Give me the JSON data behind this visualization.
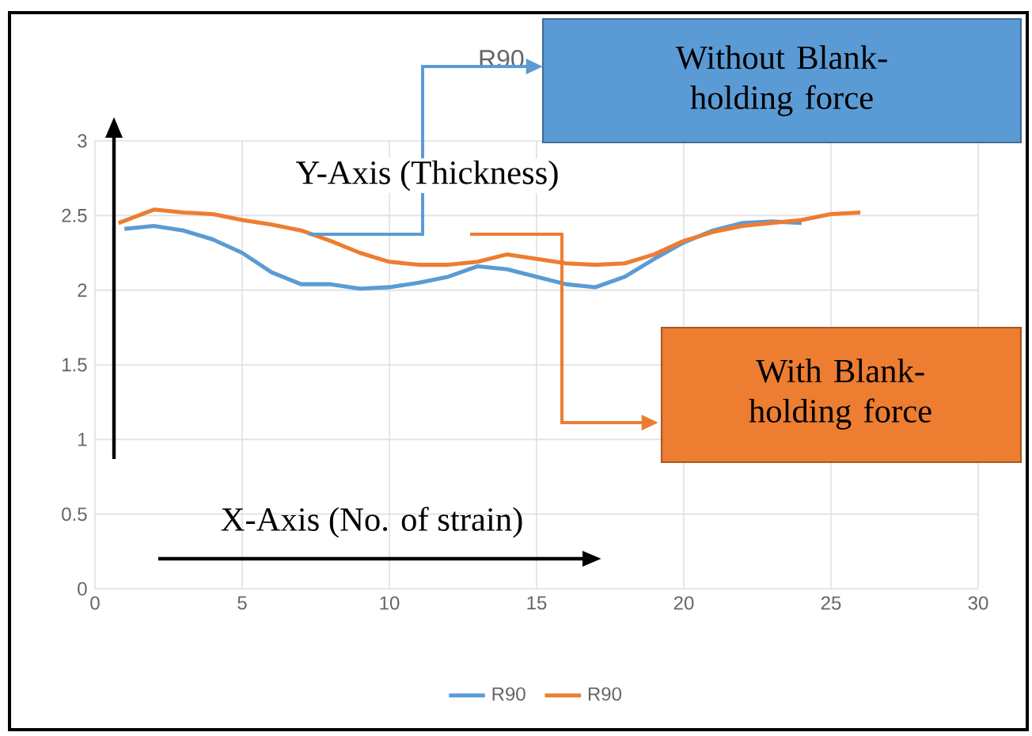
{
  "chart_data": {
    "type": "line",
    "title": "R90",
    "xlim": [
      0,
      30
    ],
    "xticks": [
      0,
      5,
      10,
      15,
      20,
      25,
      30
    ],
    "ylim": [
      0,
      3
    ],
    "yticks": [
      0,
      0.5,
      1,
      1.5,
      2,
      2.5,
      3
    ],
    "grid": true,
    "legend": "bottom",
    "marker": "none",
    "line_style": "solid",
    "series": [
      {
        "name": "R90",
        "color": "#5b9bd5",
        "x": [
          1,
          2,
          3,
          4,
          5,
          6,
          7,
          8,
          9,
          10,
          11,
          12,
          13,
          14,
          15,
          16,
          17,
          18,
          19,
          20,
          21,
          22,
          23,
          24
        ],
        "values": [
          2.41,
          2.43,
          2.4,
          2.34,
          2.25,
          2.12,
          2.04,
          2.04,
          2.01,
          2.02,
          2.05,
          2.09,
          2.16,
          2.14,
          2.09,
          2.04,
          2.02,
          2.09,
          2.21,
          2.32,
          2.4,
          2.45,
          2.46,
          2.45
        ]
      },
      {
        "name": "R90",
        "color": "#ed7d31",
        "x": [
          0.8,
          2,
          3,
          4,
          5,
          6,
          7,
          8,
          9,
          10,
          11,
          12,
          13,
          14,
          15,
          16,
          17,
          18,
          19,
          20,
          21,
          22,
          23,
          24,
          25,
          26
        ],
        "values": [
          2.45,
          2.54,
          2.52,
          2.51,
          2.47,
          2.44,
          2.4,
          2.33,
          2.25,
          2.19,
          2.17,
          2.17,
          2.19,
          2.24,
          2.21,
          2.18,
          2.17,
          2.18,
          2.24,
          2.33,
          2.39,
          2.43,
          2.45,
          2.47,
          2.51,
          2.52
        ]
      }
    ],
    "annotations": [
      "Y-Axis (Thickness)",
      "X-Axis (No. of strain)",
      "Without Blank-holding force",
      "With Blank-holding force"
    ]
  }
}
